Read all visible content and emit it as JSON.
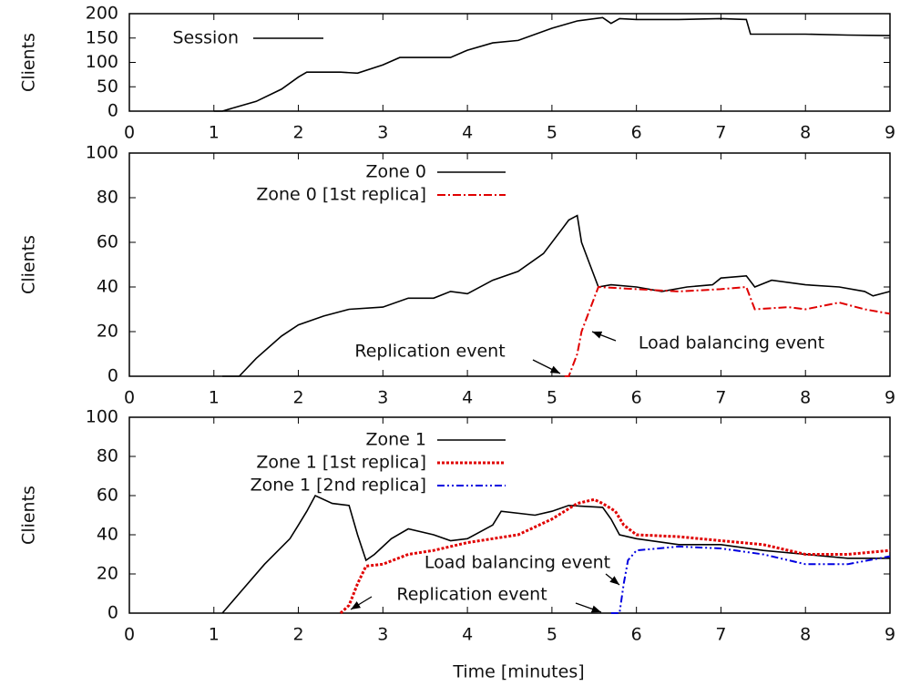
{
  "chart_data": [
    {
      "type": "line",
      "ylabel": "Clients",
      "xlim": [
        0,
        9
      ],
      "xticks": [
        0,
        1,
        2,
        3,
        4,
        5,
        6,
        7,
        8,
        9
      ],
      "ylim": [
        0,
        200
      ],
      "yticks": [
        0,
        50,
        100,
        150,
        200
      ],
      "legend": "upper left",
      "series": [
        {
          "name": "Session",
          "color": "#000000",
          "style": "solid",
          "x": [
            1.0,
            1.1,
            1.2,
            1.5,
            1.8,
            2.0,
            2.1,
            2.5,
            2.7,
            3.0,
            3.2,
            3.5,
            3.8,
            4.0,
            4.3,
            4.6,
            5.0,
            5.3,
            5.6,
            5.7,
            5.8,
            6.0,
            6.5,
            7.0,
            7.3,
            7.35,
            8.0,
            8.5,
            9.0
          ],
          "values": [
            0,
            0,
            5,
            20,
            45,
            70,
            80,
            80,
            78,
            95,
            110,
            110,
            110,
            125,
            140,
            145,
            170,
            185,
            192,
            180,
            190,
            188,
            188,
            190,
            188,
            158,
            158,
            156,
            155
          ]
        }
      ]
    },
    {
      "type": "line",
      "ylabel": "Clients",
      "xlim": [
        0,
        9
      ],
      "xticks": [
        0,
        1,
        2,
        3,
        4,
        5,
        6,
        7,
        8,
        9
      ],
      "ylim": [
        0,
        100
      ],
      "yticks": [
        0,
        20,
        40,
        60,
        80,
        100
      ],
      "legend": "upper center",
      "series": [
        {
          "name": "Zone 0",
          "color": "#000000",
          "style": "solid",
          "x": [
            1.1,
            1.3,
            1.5,
            1.8,
            2.0,
            2.3,
            2.6,
            3.0,
            3.3,
            3.6,
            3.8,
            4.0,
            4.3,
            4.6,
            4.9,
            5.1,
            5.2,
            5.3,
            5.35,
            5.45,
            5.55,
            5.7,
            6.0,
            6.3,
            6.6,
            6.9,
            7.0,
            7.3,
            7.4,
            7.6,
            8.0,
            8.4,
            8.7,
            8.8,
            9.0
          ],
          "values": [
            0,
            0,
            8,
            18,
            23,
            27,
            30,
            31,
            35,
            35,
            38,
            37,
            43,
            47,
            55,
            65,
            70,
            72,
            60,
            50,
            40,
            41,
            40,
            38,
            40,
            41,
            44,
            45,
            40,
            43,
            41,
            40,
            38,
            36,
            38
          ]
        },
        {
          "name": "Zone 0 [1st replica]",
          "color": "#e00000",
          "style": "dashdot",
          "x": [
            5.15,
            5.2,
            5.3,
            5.35,
            5.45,
            5.55,
            6.0,
            6.5,
            7.0,
            7.3,
            7.4,
            7.8,
            8.0,
            8.4,
            8.7,
            9.0
          ],
          "values": [
            0,
            0,
            10,
            20,
            30,
            40,
            39,
            38,
            39,
            40,
            30,
            31,
            30,
            33,
            30,
            28
          ]
        }
      ],
      "annotations": [
        "Replication event",
        "Load balancing event"
      ]
    },
    {
      "type": "line",
      "ylabel": "Clients",
      "xlabel": "Time [minutes]",
      "xlim": [
        0,
        9
      ],
      "xticks": [
        0,
        1,
        2,
        3,
        4,
        5,
        6,
        7,
        8,
        9
      ],
      "ylim": [
        0,
        100
      ],
      "yticks": [
        0,
        20,
        40,
        60,
        80,
        100
      ],
      "legend": "upper center",
      "series": [
        {
          "name": "Zone 1",
          "color": "#000000",
          "style": "solid",
          "x": [
            1.1,
            1.3,
            1.6,
            1.9,
            2.0,
            2.1,
            2.2,
            2.4,
            2.6,
            2.7,
            2.8,
            2.9,
            3.1,
            3.3,
            3.6,
            3.8,
            4.0,
            4.3,
            4.4,
            4.8,
            5.0,
            5.2,
            5.6,
            5.7,
            5.8,
            6.0,
            6.5,
            7.0,
            7.5,
            8.0,
            8.5,
            9.0
          ],
          "values": [
            0,
            10,
            25,
            38,
            45,
            52,
            60,
            56,
            55,
            40,
            27,
            30,
            38,
            43,
            40,
            37,
            38,
            45,
            52,
            50,
            52,
            55,
            54,
            48,
            40,
            38,
            35,
            35,
            32,
            30,
            28,
            28
          ]
        },
        {
          "name": "Zone 1 [1st replica]",
          "color": "#e00000",
          "style": "dotted",
          "x": [
            2.5,
            2.6,
            2.7,
            2.8,
            3.0,
            3.3,
            3.6,
            4.0,
            4.3,
            4.6,
            5.0,
            5.3,
            5.5,
            5.6,
            5.75,
            5.85,
            6.0,
            6.5,
            7.0,
            7.5,
            8.0,
            8.5,
            9.0
          ],
          "values": [
            0,
            4,
            15,
            24,
            25,
            30,
            32,
            36,
            38,
            40,
            48,
            56,
            58,
            56,
            52,
            45,
            40,
            39,
            37,
            35,
            30,
            30,
            32
          ]
        },
        {
          "name": "Zone 1 [2nd replica]",
          "color": "#0000e0",
          "style": "dashdotdot",
          "x": [
            5.7,
            5.8,
            5.85,
            5.9,
            6.0,
            6.5,
            7.0,
            7.5,
            8.0,
            8.5,
            9.0
          ],
          "values": [
            0,
            0,
            15,
            27,
            32,
            34,
            33,
            30,
            25,
            25,
            29
          ]
        }
      ],
      "annotations": [
        "Load balancing event",
        "Replication event"
      ]
    }
  ]
}
